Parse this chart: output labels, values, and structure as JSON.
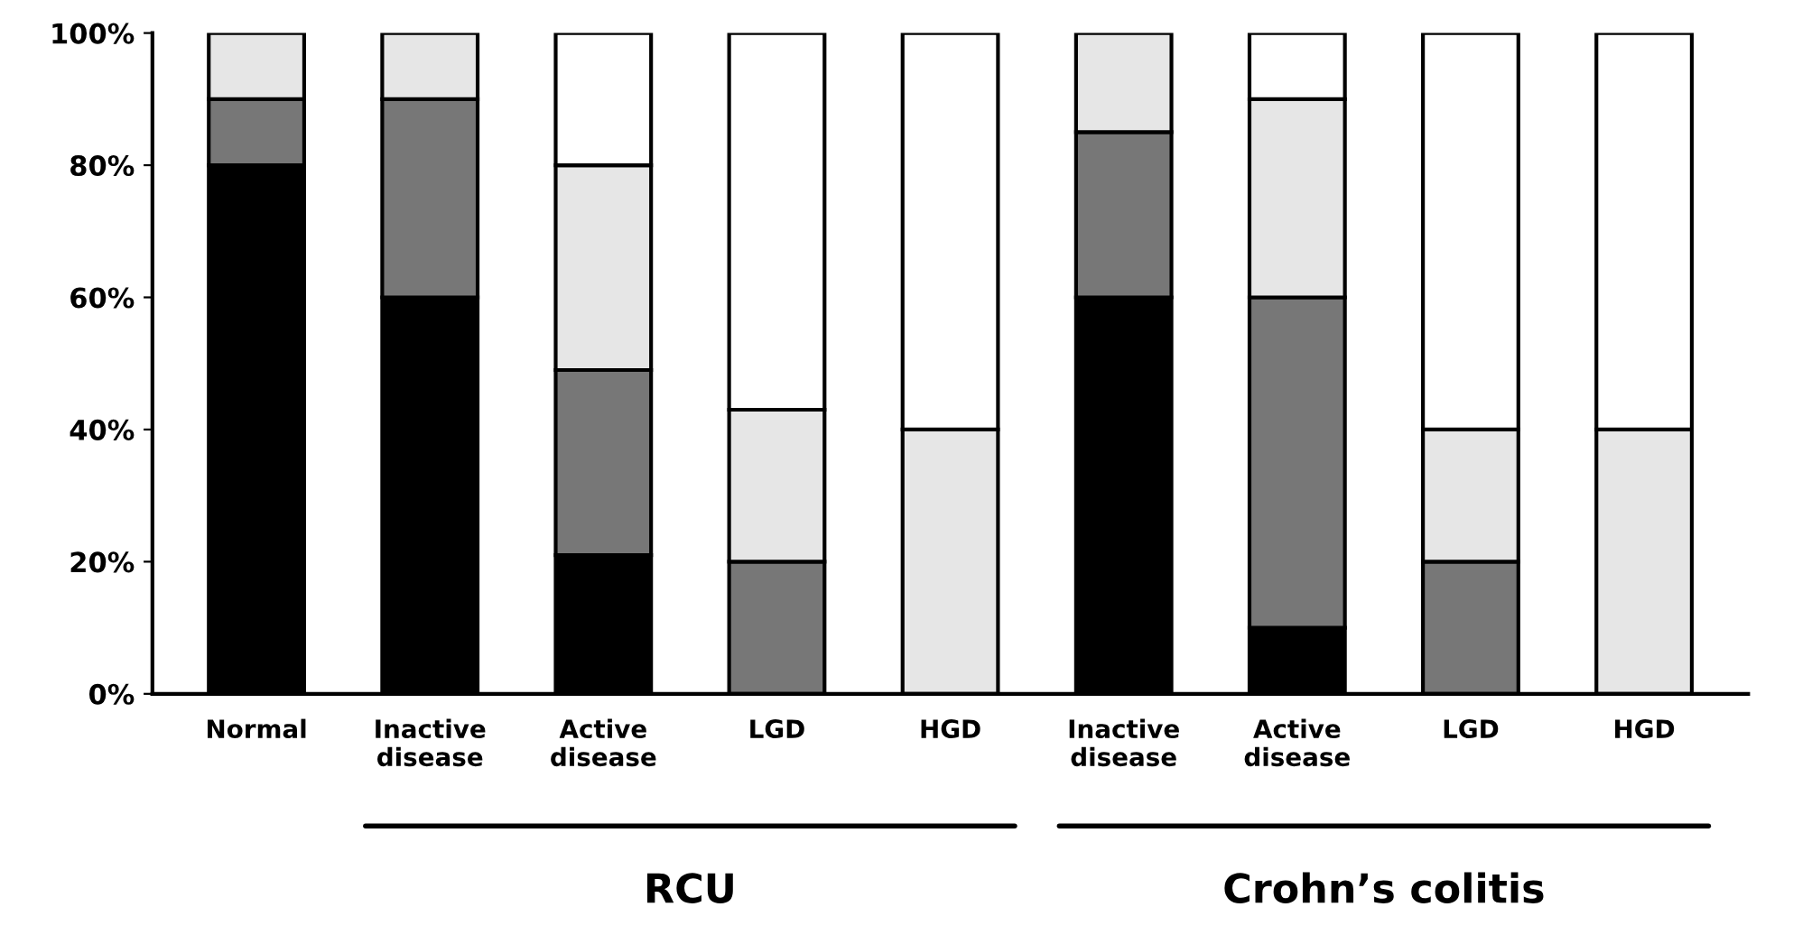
{
  "chart_data": {
    "type": "bar",
    "stacked": true,
    "categories": [
      "Normal",
      "Inactive\ndisease",
      "Active\ndisease",
      "LGD",
      "HGD",
      "Inactive\ndisease",
      "Active\ndisease",
      "LGD",
      "HGD"
    ],
    "series": [
      {
        "color": "#000000",
        "values": [
          80,
          60,
          21,
          null,
          null,
          60,
          10,
          null,
          null
        ]
      },
      {
        "color": "#777777",
        "values": [
          10,
          30,
          28,
          20,
          null,
          25,
          50,
          20,
          null
        ]
      },
      {
        "color": "#e6e6e6",
        "values": [
          10,
          10,
          31,
          23,
          40,
          15,
          30,
          20,
          40
        ]
      },
      {
        "color": "#ffffff",
        "values": [
          null,
          null,
          20,
          57,
          60,
          null,
          10,
          60,
          60
        ]
      }
    ],
    "ylim": [
      0,
      100
    ],
    "yticks": [
      {
        "value": 0,
        "label": "0%"
      },
      {
        "value": 20,
        "label": "20%"
      },
      {
        "value": 40,
        "label": "40%"
      },
      {
        "value": 60,
        "label": "60%"
      },
      {
        "value": 80,
        "label": "80%"
      },
      {
        "value": 100,
        "label": "100%"
      }
    ],
    "annotations": [
      "RCU",
      "Crohn’s colitis"
    ]
  }
}
